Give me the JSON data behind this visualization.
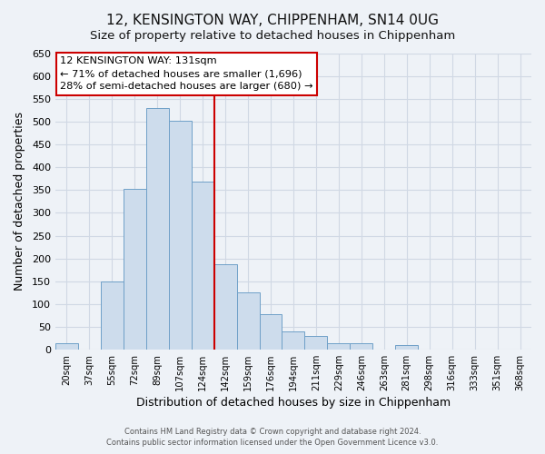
{
  "title": "12, KENSINGTON WAY, CHIPPENHAM, SN14 0UG",
  "subtitle": "Size of property relative to detached houses in Chippenham",
  "xlabel": "Distribution of detached houses by size in Chippenham",
  "ylabel": "Number of detached properties",
  "bar_labels": [
    "20sqm",
    "37sqm",
    "55sqm",
    "72sqm",
    "89sqm",
    "107sqm",
    "124sqm",
    "142sqm",
    "159sqm",
    "176sqm",
    "194sqm",
    "211sqm",
    "229sqm",
    "246sqm",
    "263sqm",
    "281sqm",
    "298sqm",
    "316sqm",
    "333sqm",
    "351sqm",
    "368sqm"
  ],
  "bar_heights": [
    13,
    0,
    150,
    353,
    530,
    503,
    368,
    188,
    125,
    78,
    40,
    30,
    14,
    14,
    0,
    10,
    0,
    0,
    0,
    0,
    0
  ],
  "bar_color": "#cddcec",
  "bar_edge_color": "#6fa0c8",
  "vline_x_index": 6.5,
  "vline_color": "#cc0000",
  "ylim": [
    0,
    650
  ],
  "yticks": [
    0,
    50,
    100,
    150,
    200,
    250,
    300,
    350,
    400,
    450,
    500,
    550,
    600,
    650
  ],
  "annotation_title": "12 KENSINGTON WAY: 131sqm",
  "annotation_line1": "← 71% of detached houses are smaller (1,696)",
  "annotation_line2": "28% of semi-detached houses are larger (680) →",
  "annotation_box_color": "#ffffff",
  "annotation_box_edge": "#cc0000",
  "footer1": "Contains HM Land Registry data © Crown copyright and database right 2024.",
  "footer2": "Contains public sector information licensed under the Open Government Licence v3.0.",
  "bg_color": "#eef2f7",
  "grid_color": "#d0d8e4",
  "title_fontsize": 11,
  "subtitle_fontsize": 9.5
}
